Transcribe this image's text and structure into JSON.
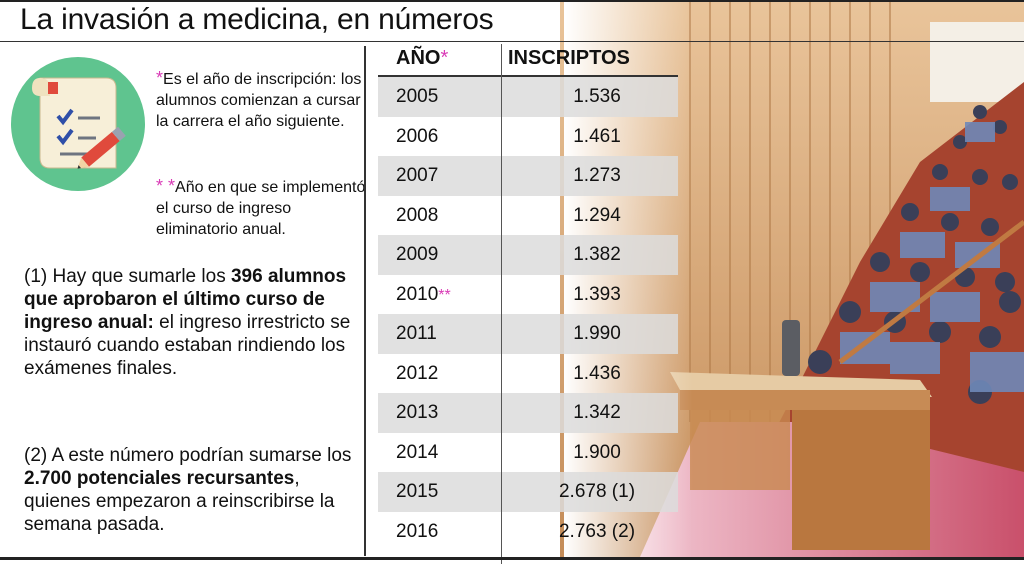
{
  "title": "La invasión a medicina, en números",
  "notes": {
    "note1_star": "*",
    "note1_text": "Es el año de inscripción: los alumnos comienzan a cursar la carrera el año siguiente.",
    "note2_star": "* *",
    "note2_text": "Año en que se implementó el curso de ingreso eliminatorio anual."
  },
  "para1": {
    "prefix": "(1) Hay que sumarle los ",
    "bold": "396 alumnos que aprobaron el último curso de ingreso anual:",
    "suffix": " el ingreso irrestricto se instauró cuando estaban rindiendo los exámenes finales."
  },
  "para2": {
    "prefix": "(2) A este número podrían sumarse los ",
    "bold": "2.700 potenciales recursantes",
    "suffix": ", quienes empezaron a reinscribirse la semana pasada."
  },
  "table": {
    "header_year": "AÑO",
    "header_year_star": "*",
    "header_ins": "INSCRIPTOS",
    "rows": [
      {
        "year": "2005",
        "star": "",
        "value": "1.536"
      },
      {
        "year": "2006",
        "star": "",
        "value": "1.461"
      },
      {
        "year": "2007",
        "star": "",
        "value": "1.273"
      },
      {
        "year": "2008",
        "star": "",
        "value": "1.294"
      },
      {
        "year": "2009",
        "star": "",
        "value": "1.382"
      },
      {
        "year": "2010",
        "star": "**",
        "value": "1.393"
      },
      {
        "year": "2011",
        "star": "",
        "value": "1.990"
      },
      {
        "year": "2012",
        "star": "",
        "value": "1.436"
      },
      {
        "year": "2013",
        "star": "",
        "value": "1.342"
      },
      {
        "year": "2014",
        "star": "",
        "value": "1.900"
      },
      {
        "year": "2015",
        "star": "",
        "value": "2.678 (1)"
      },
      {
        "year": "2016",
        "star": "",
        "value": "2.763 (2)"
      }
    ]
  },
  "colors": {
    "accent_star": "#d93bb6",
    "icon_circle": "#5fc48f"
  },
  "icons": {
    "main": "checklist-pencil-icon"
  }
}
